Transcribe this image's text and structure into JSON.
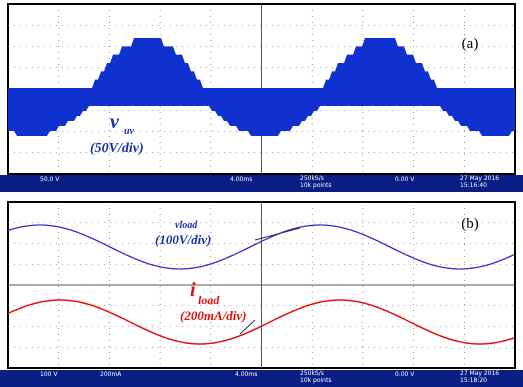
{
  "panel_a": {
    "label": "(a)",
    "signal": "v",
    "subscript": "uv",
    "scale": "(50V/div)",
    "status": [
      "50.0 V",
      "4.00ms",
      "250kS/s",
      "10k points",
      "0.00 V",
      "27 May 2016",
      "15:16:40"
    ]
  },
  "panel_b": {
    "label": "(b)",
    "voltage_signal": "vload",
    "voltage_scale": "(100V/div)",
    "current_signal": "i",
    "current_subscript": "load",
    "current_scale": "(200mA/div)",
    "status": [
      "100 V",
      "200mA",
      "4.00ms",
      "250kS/s",
      "10k points",
      "0.00 V",
      "27 May 2016",
      "15:18:20"
    ]
  }
}
